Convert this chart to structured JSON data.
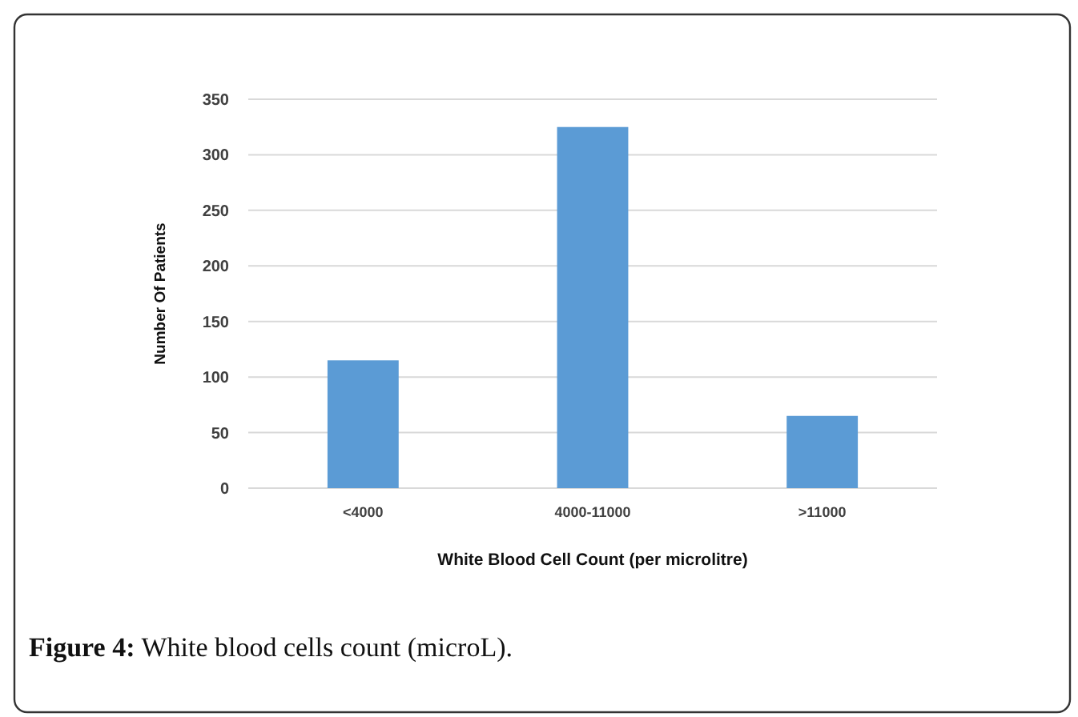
{
  "chart_data": {
    "type": "bar",
    "xlabel": "White Blood Cell Count (per microlitre)",
    "ylabel": "Number Of Patients",
    "categories": [
      "<4000",
      "4000-11000",
      ">11000"
    ],
    "values": [
      115,
      325,
      65
    ],
    "color": "#5b9bd5",
    "ylim": [
      0,
      350
    ],
    "yticks": [
      0,
      50,
      100,
      150,
      200,
      250,
      300,
      350
    ],
    "grid": "y",
    "annotations": [
      "Figure 4: White blood cells count (microL)."
    ]
  }
}
